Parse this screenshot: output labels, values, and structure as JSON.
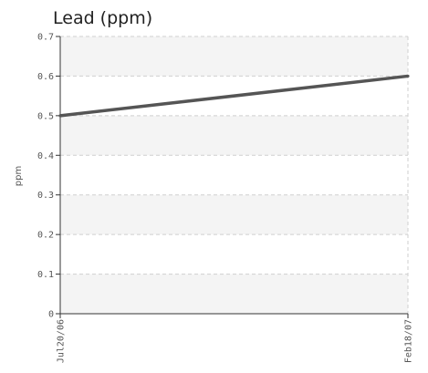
{
  "chart_data": {
    "type": "line",
    "title": "Lead (ppm)",
    "xlabel": "",
    "ylabel": "ppm",
    "x": [
      "Jul20/06",
      "Feb18/07"
    ],
    "series": [
      {
        "values": [
          0.5,
          0.6
        ]
      }
    ],
    "ylim": [
      0,
      0.7
    ],
    "yticks": [
      "0",
      "0.1",
      "0.2",
      "0.3",
      "0.4",
      "0.5",
      "0.6",
      "0.7"
    ],
    "grid": true,
    "line_color": "#555555",
    "band_color": "#f4f4f4",
    "grid_color": "#cfcfcf"
  }
}
